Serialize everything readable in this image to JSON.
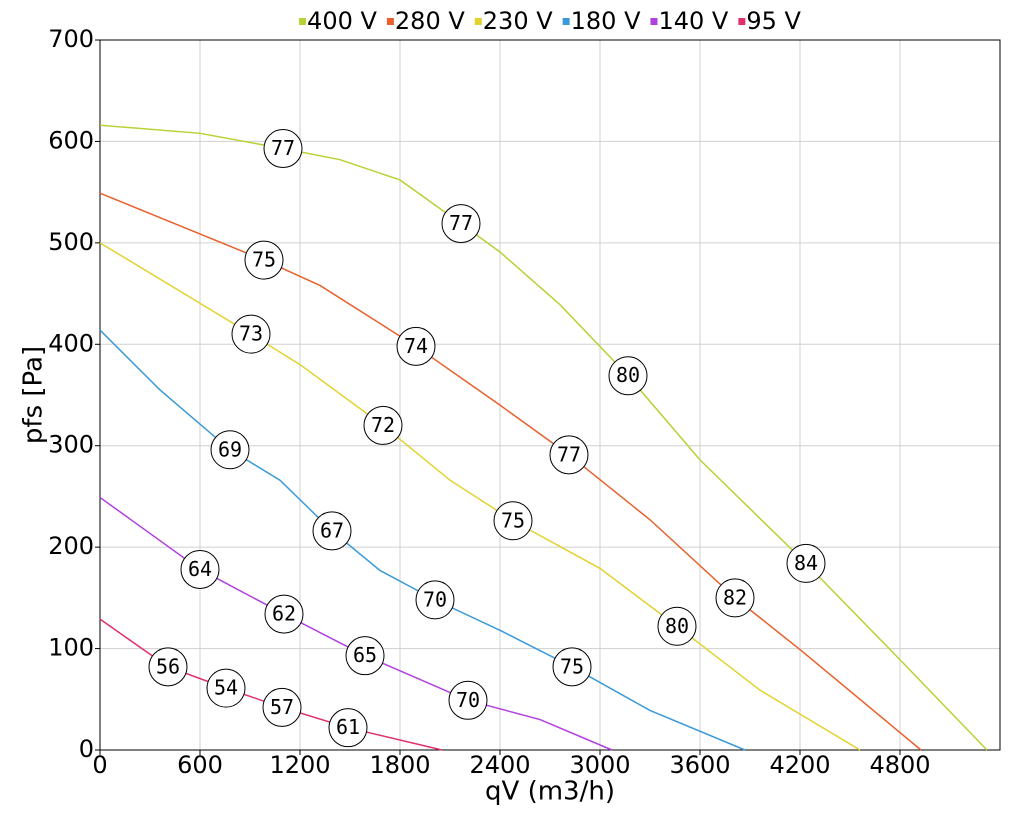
{
  "chart_data": {
    "type": "line",
    "x_label": "qV (m3/h)",
    "y_label": "pfs [Pa]",
    "xlim": [
      0,
      5400
    ],
    "ylim": [
      0,
      700
    ],
    "xticks": [
      0,
      600,
      1200,
      1800,
      2400,
      3000,
      3600,
      4200,
      4800
    ],
    "yticks": [
      0,
      100,
      200,
      300,
      400,
      500,
      600,
      700
    ],
    "grid": true,
    "legend": "top",
    "series": [
      {
        "name": "400 V",
        "color": "#b5d334",
        "x": [
          0,
          600,
          1098,
          1440,
          1800,
          2166,
          2400,
          2760,
          3168,
          3600,
          4236,
          4800,
          5322
        ],
        "values": [
          616,
          608,
          593,
          582,
          562,
          519,
          491,
          439,
          369,
          286,
          184,
          89,
          0
        ],
        "labels": {
          "x": [
            1098,
            2166,
            3168,
            4236
          ],
          "y": [
            593,
            519,
            369,
            184
          ],
          "values": [
            77,
            77,
            80,
            84
          ]
        }
      },
      {
        "name": "280 V",
        "color": "#e8602c",
        "x": [
          0,
          984,
          1320,
          1896,
          2400,
          2814,
          3300,
          3810,
          4200,
          4926
        ],
        "values": [
          549,
          483,
          458,
          398,
          340,
          291,
          227,
          150,
          99,
          0
        ],
        "labels": {
          "x": [
            984,
            1896,
            2814,
            3810
          ],
          "y": [
            483,
            398,
            291,
            150
          ],
          "values": [
            75,
            74,
            77,
            82
          ]
        }
      },
      {
        "name": "230 V",
        "color": "#e3d22e",
        "x": [
          0,
          906,
          1200,
          1698,
          2100,
          2478,
          3000,
          3462,
          3960,
          4560
        ],
        "values": [
          500,
          410,
          380,
          320,
          266,
          226,
          179,
          122,
          59,
          0
        ],
        "labels": {
          "x": [
            906,
            1698,
            2478,
            3462
          ],
          "y": [
            410,
            320,
            226,
            122
          ],
          "values": [
            73,
            72,
            75,
            80
          ]
        }
      },
      {
        "name": "180 V",
        "color": "#3a9ad9",
        "x": [
          0,
          360,
          780,
          1080,
          1392,
          1680,
          2010,
          2400,
          2832,
          3300,
          3870
        ],
        "values": [
          414,
          355,
          296,
          266,
          216,
          177,
          148,
          118,
          82,
          39,
          0
        ],
        "labels": {
          "x": [
            780,
            1392,
            2010,
            2832
          ],
          "y": [
            296,
            216,
            148,
            82
          ],
          "values": [
            69,
            67,
            70,
            75
          ]
        }
      },
      {
        "name": "140 V",
        "color": "#b040e0",
        "x": [
          0,
          600,
          1104,
          1590,
          2208,
          2640,
          3072
        ],
        "values": [
          249,
          178,
          134,
          93,
          49,
          30,
          0
        ],
        "labels": {
          "x": [
            600,
            1104,
            1590,
            2208
          ],
          "y": [
            178,
            134,
            93,
            49
          ],
          "values": [
            64,
            62,
            65,
            70
          ]
        }
      },
      {
        "name": "95 V",
        "color": "#e0306a",
        "x": [
          0,
          408,
          756,
          1092,
          1488,
          2052
        ],
        "values": [
          129,
          82,
          61,
          42,
          22,
          0
        ],
        "labels": {
          "x": [
            408,
            756,
            1092,
            1488
          ],
          "y": [
            82,
            61,
            42,
            22
          ],
          "values": [
            56,
            54,
            57,
            61
          ]
        }
      }
    ]
  }
}
